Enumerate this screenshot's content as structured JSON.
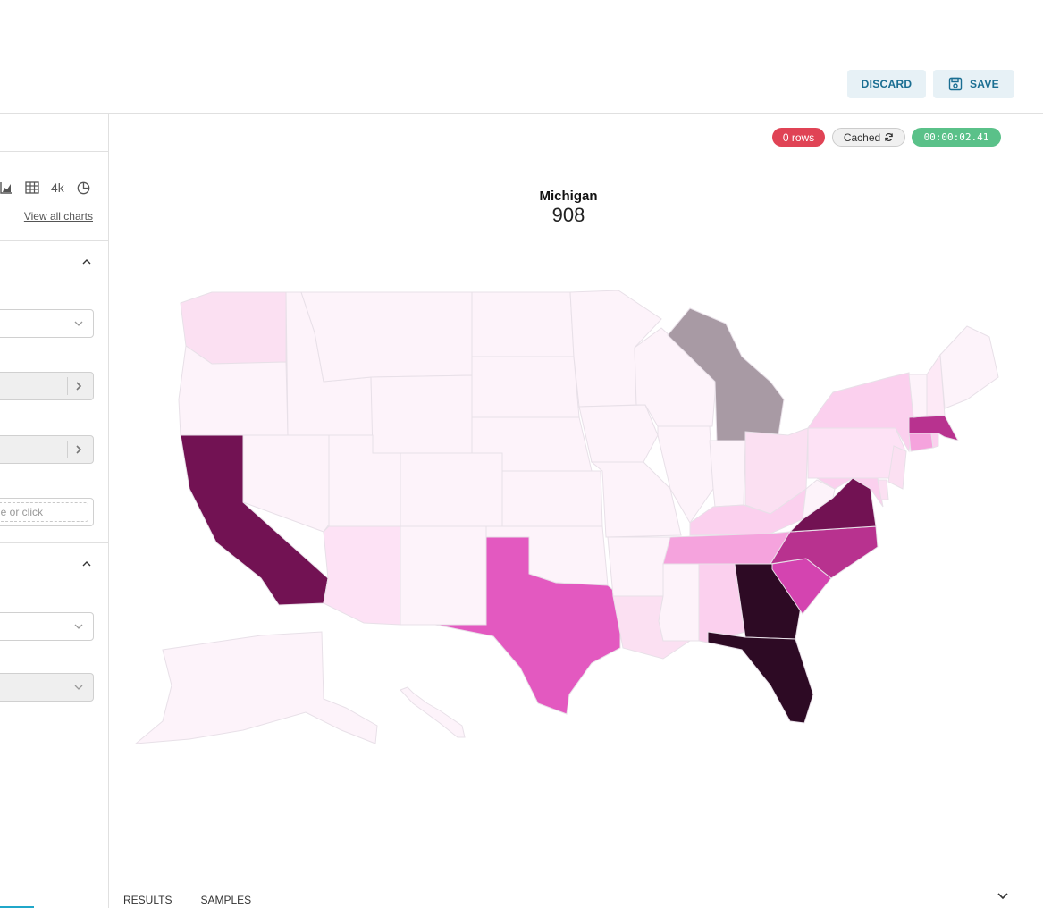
{
  "toolbar": {
    "discard_label": "DISCARD",
    "save_label": "SAVE"
  },
  "sidebar": {
    "viz_icons": [
      "area-chart-icon",
      "table-icon",
      "big-number-icon",
      "pie-chart-icon"
    ],
    "big_number_label": "4k",
    "view_all_charts": "View all charts",
    "drop_placeholder": "e or click"
  },
  "status": {
    "rows": "0 rows",
    "cached": "Cached",
    "duration": "00:00:02.41"
  },
  "chart_data": {
    "type": "choropleth",
    "region": "USA",
    "hover_title": "Michigan",
    "hover_value": "908",
    "colors": {
      "lightest": "#fdf3fa",
      "light": "#fbd0ee",
      "medium": "#f5a3dd",
      "mid": "#e359c0",
      "strong": "#b8328f",
      "dark": "#721253",
      "darkest": "#2d0a24",
      "hover": "#a89aa4"
    }
  },
  "tabs": {
    "results": "RESULTS",
    "samples": "SAMPLES"
  }
}
